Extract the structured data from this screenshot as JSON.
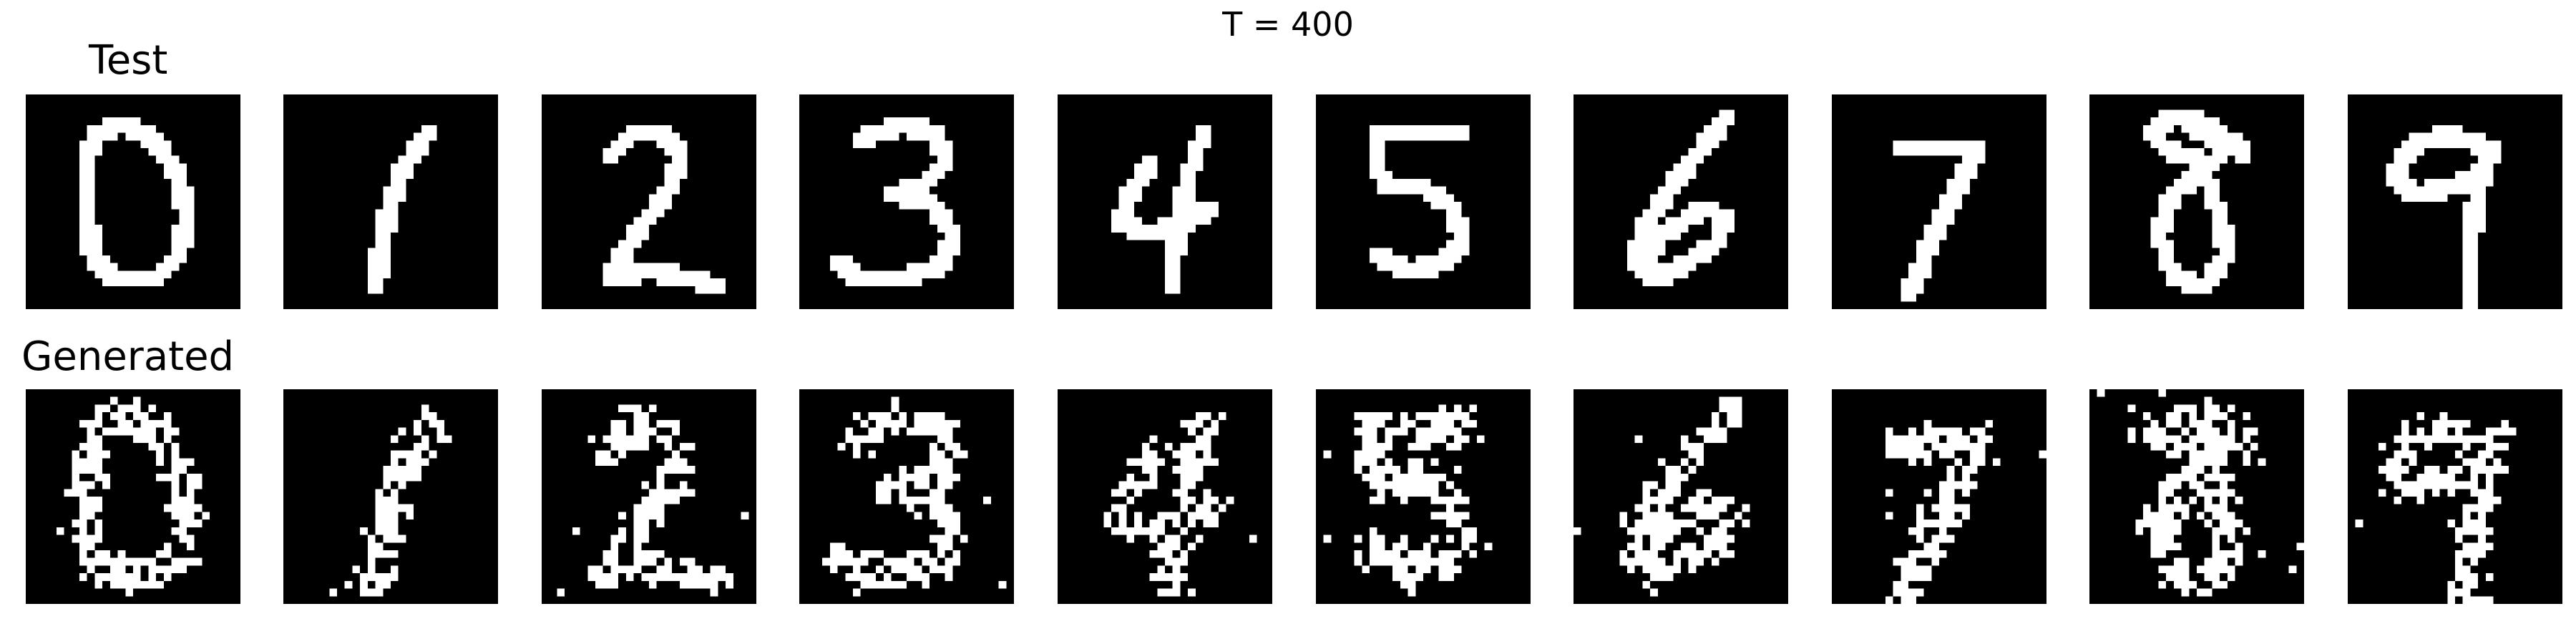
{
  "figure": {
    "title": "T = 400",
    "rows": [
      {
        "label": "Test",
        "kind": "test"
      },
      {
        "label": "Generated",
        "kind": "generated"
      }
    ]
  },
  "digits": [
    0,
    1,
    2,
    3,
    4,
    5,
    6,
    7,
    8,
    9
  ],
  "colors": {
    "background": "#000000",
    "ink": "#ffffff",
    "page": "#ffffff"
  },
  "image_grid": "28x28 binary"
}
